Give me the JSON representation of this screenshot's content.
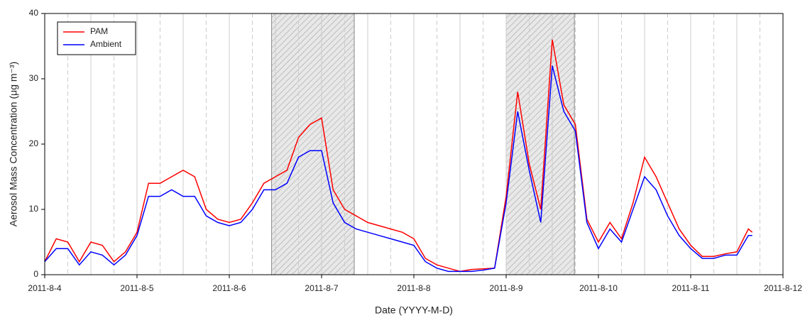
{
  "chart_data": {
    "type": "line",
    "x_label": "Date (YYYY-M-D)",
    "y_label": "Aerosol Mass Concentration (μg m⁻³)",
    "x": [
      "2011-8-4 00:00",
      "2011-8-4 03:00",
      "2011-8-4 06:00",
      "2011-8-4 09:00",
      "2011-8-4 12:00",
      "2011-8-4 15:00",
      "2011-8-4 18:00",
      "2011-8-4 21:00",
      "2011-8-5 00:00",
      "2011-8-5 03:00",
      "2011-8-5 06:00",
      "2011-8-5 09:00",
      "2011-8-5 12:00",
      "2011-8-5 15:00",
      "2011-8-5 18:00",
      "2011-8-5 21:00",
      "2011-8-6 00:00",
      "2011-8-6 03:00",
      "2011-8-6 06:00",
      "2011-8-6 09:00",
      "2011-8-6 12:00",
      "2011-8-6 15:00",
      "2011-8-6 18:00",
      "2011-8-6 21:00",
      "2011-8-7 00:00",
      "2011-8-7 03:00",
      "2011-8-7 06:00",
      "2011-8-7 09:00",
      "2011-8-7 12:00",
      "2011-8-7 15:00",
      "2011-8-7 18:00",
      "2011-8-7 21:00",
      "2011-8-8 00:00",
      "2011-8-8 03:00",
      "2011-8-8 06:00",
      "2011-8-8 09:00",
      "2011-8-8 12:00",
      "2011-8-8 15:00",
      "2011-8-8 18:00",
      "2011-8-8 21:00",
      "2011-8-9 00:00",
      "2011-8-9 03:00",
      "2011-8-9 06:00",
      "2011-8-9 09:00",
      "2011-8-9 12:00",
      "2011-8-9 15:00",
      "2011-8-9 18:00",
      "2011-8-9 21:00",
      "2011-8-10 00:00",
      "2011-8-10 03:00",
      "2011-8-10 06:00",
      "2011-8-10 09:00",
      "2011-8-10 12:00",
      "2011-8-10 15:00",
      "2011-8-10 18:00",
      "2011-8-10 21:00",
      "2011-8-11 00:00",
      "2011-8-11 03:00",
      "2011-8-11 06:00",
      "2011-8-11 09:00",
      "2011-8-11 12:00",
      "2011-8-11 15:00",
      "2011-8-11 16:00"
    ],
    "series": [
      {
        "name": "PAM",
        "color": "#ff0000",
        "values": [
          2,
          5.5,
          5,
          2,
          5,
          4.5,
          2,
          3.5,
          6.5,
          14,
          14,
          15,
          16,
          15,
          10,
          8.5,
          8,
          8.5,
          11,
          14,
          15,
          16,
          21,
          23,
          24,
          13,
          10,
          9,
          8,
          7.5,
          7,
          6.5,
          5.5,
          2.5,
          1.5,
          1,
          0.5,
          0.8,
          0.9,
          1,
          12,
          28,
          17,
          10,
          36,
          26,
          23,
          8.5,
          5,
          8,
          5.5,
          11,
          18,
          15,
          11,
          7,
          4.5,
          2.8,
          2.8,
          3.2,
          3.5,
          7,
          6.5
        ]
      },
      {
        "name": "Ambient",
        "color": "#0000ff",
        "values": [
          2,
          4,
          4,
          1.5,
          3.5,
          3,
          1.5,
          3,
          6,
          12,
          12,
          13,
          12,
          12,
          9,
          8,
          7.5,
          8,
          10,
          13,
          13,
          14,
          18,
          19,
          19,
          11,
          8,
          7,
          6.5,
          6,
          5.5,
          5,
          4.5,
          2,
          1,
          0.5,
          0.5,
          0.5,
          0.7,
          1,
          11,
          25,
          16,
          8,
          32,
          25,
          22,
          8,
          4,
          7,
          5,
          10,
          15,
          13,
          9,
          6,
          4,
          2.5,
          2.5,
          3,
          3,
          6,
          6
        ]
      }
    ],
    "xlim": [
      "2011-8-4",
      "2011-8-12"
    ],
    "xticks": [
      "2011-8-4",
      "2011-8-5",
      "2011-8-6",
      "2011-8-7",
      "2011-8-8",
      "2011-8-9",
      "2011-8-10",
      "2011-8-11",
      "2011-8-12"
    ],
    "ylim": [
      0,
      40
    ],
    "yticks": [
      0,
      10,
      20,
      30,
      40
    ],
    "shaded_regions": [
      [
        "2011-8-6 11:00",
        "2011-8-7 08:30"
      ],
      [
        "2011-8-9 00:00",
        "2011-8-9 17:45"
      ]
    ],
    "grid": true,
    "legend": "upper left"
  }
}
